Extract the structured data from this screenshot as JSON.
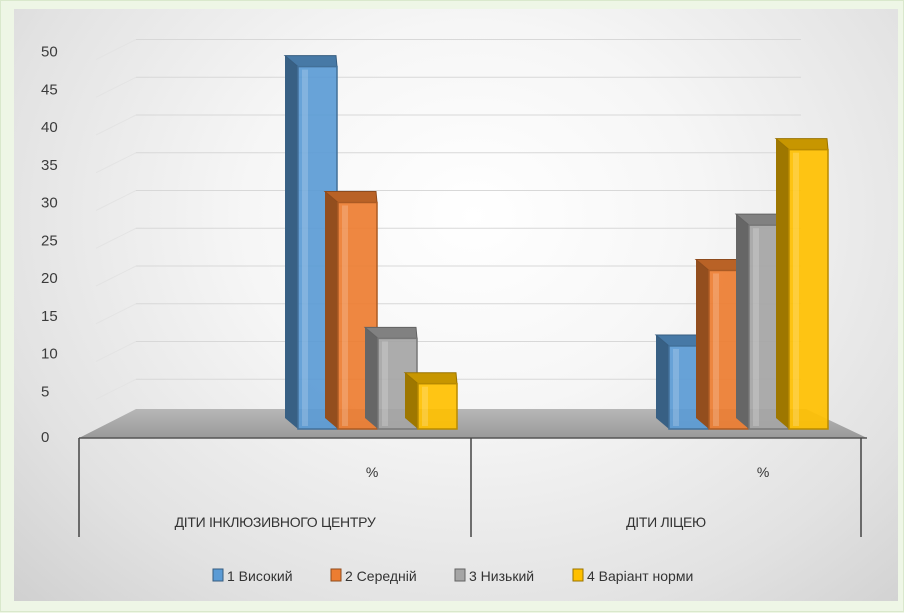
{
  "chart_data": {
    "type": "bar",
    "categories": [
      "ДІТИ ІНКЛЮЗИВНОГО ЦЕНТРУ",
      "ДІТИ ЛІЦЕЮ"
    ],
    "sub_categories": [
      "%",
      "%"
    ],
    "series": [
      {
        "name": "1 Високий",
        "values": [
          48,
          11
        ],
        "color": "#5b9bd5"
      },
      {
        "name": "2 Середній",
        "values": [
          30,
          21
        ],
        "color": "#ed7d31"
      },
      {
        "name": "3 Низький",
        "values": [
          12,
          27
        ],
        "color": "#a5a5a5"
      },
      {
        "name": "4 Варіант норми",
        "values": [
          6,
          37
        ],
        "color": "#ffc000"
      }
    ],
    "yticks": [
      0,
      5,
      10,
      15,
      20,
      25,
      30,
      35,
      40,
      45,
      50
    ],
    "ylim": [
      0,
      50
    ],
    "grid": true,
    "legend_position": "bottom",
    "style": "3d-column"
  }
}
